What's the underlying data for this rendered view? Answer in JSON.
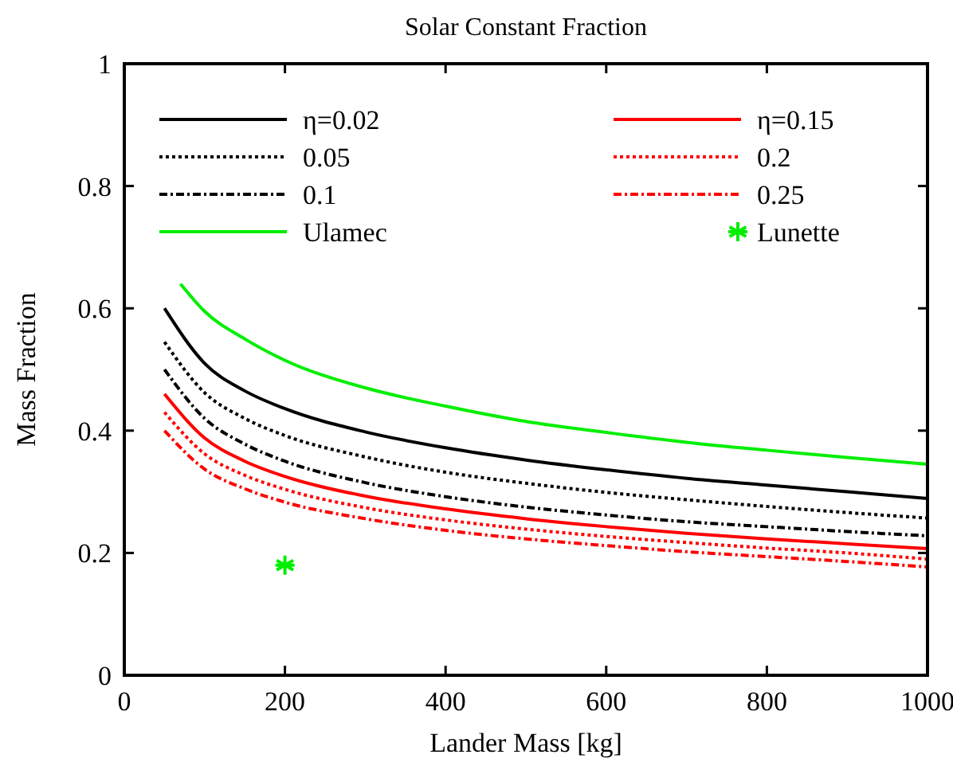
{
  "chart_data": {
    "type": "line",
    "title": "Solar Constant Fraction",
    "xlabel": "Lander Mass [kg]",
    "ylabel": "Mass Fraction",
    "xlim": [
      0,
      1000
    ],
    "ylim": [
      0,
      1
    ],
    "xticks": [
      0,
      200,
      400,
      600,
      800,
      1000
    ],
    "yticks": [
      0,
      0.2,
      0.4,
      0.6,
      0.8,
      1
    ],
    "x": [
      50,
      100,
      150,
      200,
      300,
      400,
      500,
      600,
      700,
      800,
      900,
      1000
    ],
    "grid": false,
    "legend": "top",
    "series": [
      {
        "name": "η=0.02",
        "color": "#000000",
        "line_style": "solid",
        "values": [
          0.6,
          0.51,
          0.465,
          0.436,
          0.398,
          0.372,
          0.352,
          0.336,
          0.322,
          0.311,
          0.3,
          0.289
        ]
      },
      {
        "name": "0.05",
        "color": "#000000",
        "line_style": "dotted",
        "values": [
          0.545,
          0.462,
          0.42,
          0.392,
          0.357,
          0.332,
          0.314,
          0.299,
          0.287,
          0.276,
          0.266,
          0.257
        ]
      },
      {
        "name": "0.1",
        "color": "#000000",
        "line_style": "dashed",
        "values": [
          0.5,
          0.42,
          0.378,
          0.35,
          0.315,
          0.292,
          0.275,
          0.262,
          0.251,
          0.243,
          0.235,
          0.228
        ]
      },
      {
        "name": "Ulamec",
        "color": "#00ee00",
        "line_style": "solid",
        "x": [
          70,
          100,
          150,
          200,
          300,
          400,
          500,
          600,
          700,
          800,
          900,
          1000
        ],
        "values": [
          0.64,
          0.595,
          0.55,
          0.515,
          0.47,
          0.44,
          0.415,
          0.397,
          0.381,
          0.368,
          0.356,
          0.345
        ]
      },
      {
        "name": "η=0.15",
        "color": "#ff0000",
        "line_style": "solid",
        "values": [
          0.46,
          0.388,
          0.35,
          0.325,
          0.293,
          0.272,
          0.256,
          0.243,
          0.232,
          0.223,
          0.215,
          0.207
        ]
      },
      {
        "name": "0.2",
        "color": "#ff0000",
        "line_style": "dotted",
        "values": [
          0.43,
          0.362,
          0.327,
          0.304,
          0.274,
          0.254,
          0.239,
          0.227,
          0.217,
          0.208,
          0.2,
          0.19
        ]
      },
      {
        "name": "0.25",
        "color": "#ff0000",
        "line_style": "dashed",
        "values": [
          0.4,
          0.337,
          0.305,
          0.283,
          0.256,
          0.237,
          0.223,
          0.212,
          0.202,
          0.194,
          0.186,
          0.177
        ]
      },
      {
        "name": "Lunette",
        "type": "scatter",
        "color": "#00ee00",
        "marker": "cross",
        "x": [
          200
        ],
        "values": [
          0.18
        ]
      }
    ]
  }
}
